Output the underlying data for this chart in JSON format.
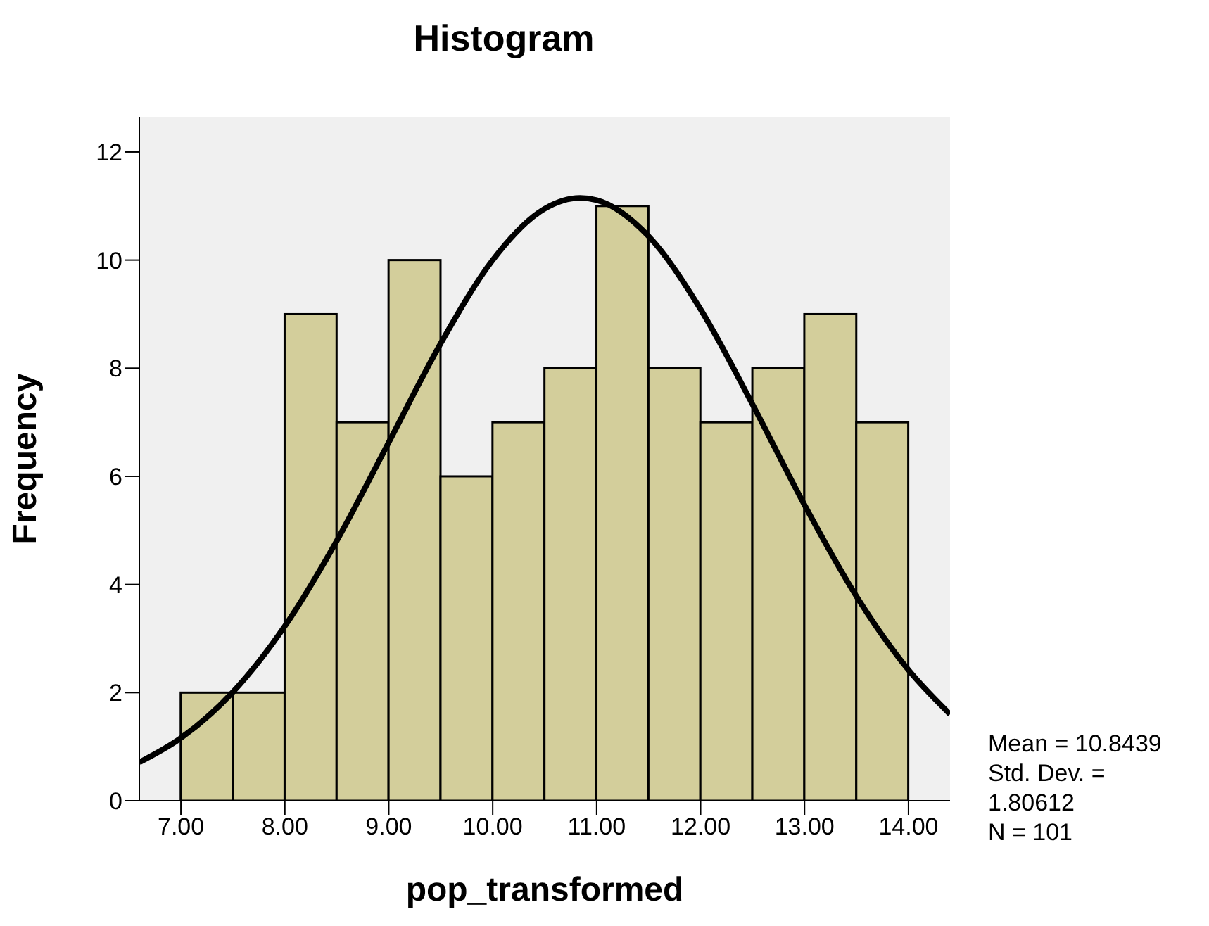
{
  "chart_data": {
    "type": "histogram",
    "title": "Histogram",
    "xlabel": "pop_transformed",
    "ylabel": "Frequency",
    "bins": [
      7.0,
      7.5,
      8.0,
      8.5,
      9.0,
      9.5,
      10.0,
      10.5,
      11.0,
      11.5,
      12.0,
      12.5,
      13.0,
      13.5,
      14.0
    ],
    "values": [
      2,
      2,
      9,
      7,
      10,
      6,
      7,
      8,
      11,
      8,
      7,
      8,
      9,
      7
    ],
    "color": "#d3ce9b",
    "series": [
      {
        "type": "line",
        "color": "#000000",
        "x": [
          6.6,
          7.0,
          7.5,
          8.0,
          8.5,
          9.0,
          9.5,
          10.0,
          10.5,
          10.84,
          11.0,
          11.5,
          12.0,
          12.5,
          13.0,
          13.5,
          14.0,
          14.4
        ],
        "values": [
          0.71,
          1.16,
          2.01,
          3.23,
          4.81,
          6.63,
          8.46,
          10.0,
          10.95,
          11.15,
          11.11,
          10.44,
          9.09,
          7.33,
          5.47,
          3.78,
          2.42,
          1.6
        ]
      }
    ],
    "xlim": [
      6.6,
      14.4
    ],
    "ylim": [
      0,
      12.65
    ],
    "xticks": [
      {
        "value": 7,
        "label": "7.00"
      },
      {
        "value": 8,
        "label": "8.00"
      },
      {
        "value": 9,
        "label": "9.00"
      },
      {
        "value": 10,
        "label": "10.00"
      },
      {
        "value": 11,
        "label": "11.00"
      },
      {
        "value": 12,
        "label": "12.00"
      },
      {
        "value": 13,
        "label": "13.00"
      },
      {
        "value": 14,
        "label": "14.00"
      }
    ],
    "yticks": [
      0,
      2,
      4,
      6,
      8,
      10,
      12
    ],
    "grid": false,
    "legend": false,
    "annotations": [
      "Mean = 10.8439",
      "Std. Dev. = 1.80612",
      "N = 101"
    ]
  }
}
